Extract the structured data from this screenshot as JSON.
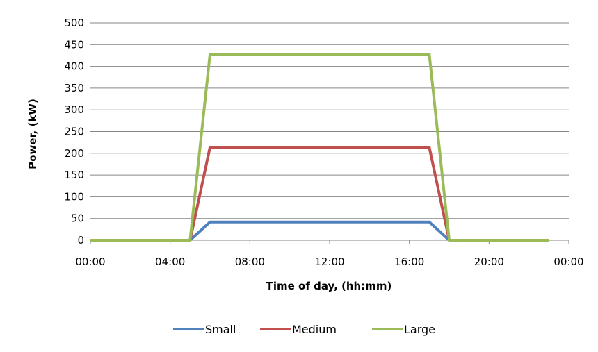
{
  "chart_data": {
    "type": "line",
    "title": "",
    "xlabel": "Time of day, (hh:mm)",
    "ylabel": "Power, (kW)",
    "xlim": [
      "00:00",
      "24:00"
    ],
    "ylim": [
      0,
      500
    ],
    "y_ticks": [
      0,
      50,
      100,
      150,
      200,
      250,
      300,
      350,
      400,
      450,
      500
    ],
    "x_tick_labels": [
      "00:00",
      "04:00",
      "08:00",
      "12:00",
      "16:00",
      "20:00",
      "00:00"
    ],
    "grid": "horizontal",
    "legend_position": "bottom",
    "x": [
      "00:00",
      "01:00",
      "02:00",
      "03:00",
      "04:00",
      "05:00",
      "06:00",
      "07:00",
      "08:00",
      "09:00",
      "10:00",
      "11:00",
      "12:00",
      "13:00",
      "14:00",
      "15:00",
      "16:00",
      "17:00",
      "18:00",
      "19:00",
      "20:00",
      "21:00",
      "22:00",
      "23:00"
    ],
    "series": [
      {
        "name": "Small",
        "color": "#4f81bd",
        "values": [
          0,
          0,
          0,
          0,
          0,
          0,
          42,
          42,
          42,
          42,
          42,
          42,
          42,
          42,
          42,
          42,
          42,
          42,
          0,
          0,
          0,
          0,
          0,
          0
        ]
      },
      {
        "name": "Medium",
        "color": "#c0504d",
        "values": [
          0,
          0,
          0,
          0,
          0,
          0,
          214,
          214,
          214,
          214,
          214,
          214,
          214,
          214,
          214,
          214,
          214,
          214,
          0,
          0,
          0,
          0,
          0,
          0
        ]
      },
      {
        "name": "Large",
        "color": "#9bbb59",
        "values": [
          0,
          0,
          0,
          0,
          0,
          0,
          428,
          428,
          428,
          428,
          428,
          428,
          428,
          428,
          428,
          428,
          428,
          428,
          0,
          0,
          0,
          0,
          0,
          0
        ]
      }
    ]
  }
}
